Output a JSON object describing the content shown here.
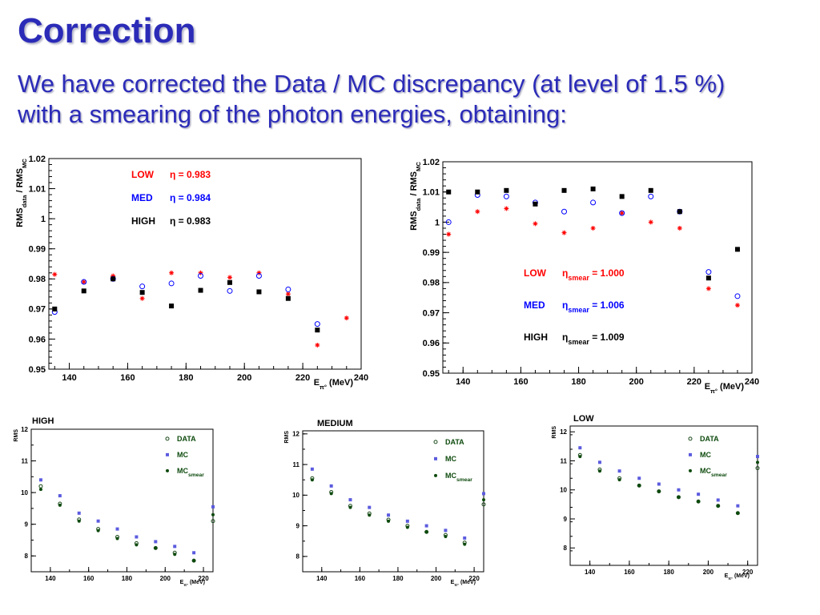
{
  "slide": {
    "title": "Correction",
    "subtitle_main": "We have corrected the Data / MC discrepancy (at level of ",
    "subtitle_value": "1.5 %)",
    "subtitle_line2": "with a smearing of the photon energies, obtaining:"
  },
  "colors": {
    "title": "#2b2bb8",
    "low": "#ff0000",
    "med": "#0000ff",
    "high": "#000000",
    "mc": "#5b5bdf",
    "mc_smear": "#0d4a0d",
    "data": "#1a4a1a"
  },
  "chart_data": [
    {
      "type": "scatter",
      "ylabel": "RMS_data / RMS_MC",
      "xlabel": "E_π° (MeV)",
      "xlim": [
        133,
        240
      ],
      "ylim": [
        0.95,
        1.02
      ],
      "xticks": [
        "140",
        "160",
        "180",
        "200",
        "220",
        "240"
      ],
      "yticks": [
        "0.95",
        "0.96",
        "0.97",
        "0.98",
        "0.99",
        "1",
        "1.01",
        "1.02"
      ],
      "legend": [
        {
          "name": "LOW",
          "symbol": "η",
          "value": "= 0.983",
          "color": "#ff0000"
        },
        {
          "name": "MED",
          "symbol": "η",
          "value": "= 0.984",
          "color": "#0000ff"
        },
        {
          "name": "HIGH",
          "symbol": "η",
          "value": "= 0.983",
          "color": "#000000"
        }
      ],
      "series": [
        {
          "name": "LOW",
          "marker": "star",
          "color": "#ff0000",
          "x": [
            135,
            145,
            155,
            165,
            175,
            185,
            195,
            205,
            215,
            225,
            235
          ],
          "y": [
            0.9815,
            0.979,
            0.981,
            0.9735,
            0.982,
            0.982,
            0.9805,
            0.982,
            0.975,
            0.958,
            0.967
          ]
        },
        {
          "name": "MED",
          "marker": "open-circle",
          "color": "#0000ff",
          "x": [
            135,
            145,
            155,
            165,
            175,
            185,
            195,
            205,
            215,
            225
          ],
          "y": [
            0.969,
            0.979,
            0.98,
            0.9775,
            0.9785,
            0.981,
            0.976,
            0.981,
            0.9765,
            0.965
          ]
        },
        {
          "name": "HIGH",
          "marker": "square",
          "color": "#000000",
          "x": [
            135,
            145,
            155,
            165,
            175,
            185,
            195,
            205,
            215,
            225
          ],
          "y": [
            0.97,
            0.976,
            0.98,
            0.9755,
            0.971,
            0.9762,
            0.9788,
            0.9757,
            0.9735,
            0.963
          ]
        }
      ]
    },
    {
      "type": "scatter",
      "ylabel": "RMS_data / RMS_MC",
      "xlabel": "E_π° (MeV)",
      "xlim": [
        133,
        240
      ],
      "ylim": [
        0.95,
        1.02
      ],
      "xticks": [
        "140",
        "160",
        "180",
        "200",
        "220",
        "240"
      ],
      "yticks": [
        "0.95",
        "0.96",
        "0.97",
        "0.98",
        "0.99",
        "1",
        "1.01",
        "1.02"
      ],
      "legend": [
        {
          "name": "LOW",
          "symbol": "η",
          "sub": "smear",
          "value": "= 1.000",
          "color": "#ff0000"
        },
        {
          "name": "MED",
          "symbol": "η",
          "sub": "smear",
          "value": "= 1.006",
          "color": "#0000ff"
        },
        {
          "name": "HIGH",
          "symbol": "η",
          "sub": "smear",
          "value": "= 1.009",
          "color": "#000000"
        }
      ],
      "series": [
        {
          "name": "LOW",
          "marker": "star",
          "color": "#ff0000",
          "x": [
            135,
            145,
            155,
            165,
            175,
            185,
            195,
            205,
            215,
            225,
            235
          ],
          "y": [
            0.996,
            1.0035,
            1.0045,
            0.9995,
            0.9965,
            0.998,
            1.003,
            1.0,
            0.998,
            0.978,
            0.9725
          ]
        },
        {
          "name": "MED",
          "marker": "open-circle",
          "color": "#0000ff",
          "x": [
            135,
            145,
            155,
            165,
            175,
            185,
            195,
            205,
            215,
            225,
            235
          ],
          "y": [
            1.0,
            1.009,
            1.0085,
            1.0065,
            1.0035,
            1.0065,
            1.003,
            1.0085,
            1.0035,
            0.9835,
            0.9755
          ]
        },
        {
          "name": "HIGH",
          "marker": "square",
          "color": "#000000",
          "x": [
            135,
            145,
            155,
            165,
            175,
            185,
            195,
            205,
            215,
            225,
            235
          ],
          "y": [
            1.01,
            1.01,
            1.0105,
            1.006,
            1.0105,
            1.011,
            1.0085,
            1.0105,
            1.0035,
            0.9815,
            0.991
          ]
        }
      ]
    },
    {
      "type": "scatter",
      "title": "HIGH",
      "ylabel": "RMS",
      "xlabel": "E_π° (MeV)",
      "xlim": [
        130,
        225
      ],
      "ylim": [
        7.5,
        12
      ],
      "xticks": [
        "140",
        "160",
        "180",
        "200",
        "220"
      ],
      "yticks": [
        "8",
        "9",
        "10",
        "11",
        "12"
      ],
      "legend": [
        "DATA",
        "MC",
        "MC_smear"
      ],
      "series": [
        {
          "name": "DATA",
          "marker": "open-circle",
          "color": "#1a4a1a",
          "x": [
            135,
            145,
            155,
            165,
            175,
            185,
            195,
            205,
            215,
            225
          ],
          "y": [
            10.2,
            9.65,
            9.15,
            8.85,
            8.6,
            8.4,
            8.25,
            8.1,
            7.85,
            9.1
          ]
        },
        {
          "name": "MC",
          "marker": "square",
          "color": "#5b5bdf",
          "x": [
            135,
            145,
            155,
            165,
            175,
            185,
            195,
            205,
            215,
            225
          ],
          "y": [
            10.4,
            9.9,
            9.35,
            9.1,
            8.85,
            8.6,
            8.45,
            8.3,
            8.1,
            9.55
          ]
        },
        {
          "name": "MC_smear",
          "marker": "dot",
          "color": "#0d4a0d",
          "x": [
            135,
            145,
            155,
            165,
            175,
            185,
            195,
            205,
            215,
            225
          ],
          "y": [
            10.1,
            9.6,
            9.1,
            8.8,
            8.55,
            8.35,
            8.25,
            8.05,
            7.85,
            9.3
          ]
        }
      ]
    },
    {
      "type": "scatter",
      "title": "MEDIUM",
      "ylabel": "RMS",
      "xlabel": "E_π° (MeV)",
      "xlim": [
        130,
        225
      ],
      "ylim": [
        7.5,
        12.1
      ],
      "xticks": [
        "140",
        "160",
        "180",
        "200",
        "220"
      ],
      "yticks": [
        "8",
        "9",
        "10",
        "11",
        "12"
      ],
      "legend": [
        "DATA",
        "MC",
        "MC_smear"
      ],
      "series": [
        {
          "name": "DATA",
          "marker": "open-circle",
          "color": "#1a4a1a",
          "x": [
            135,
            145,
            155,
            165,
            175,
            185,
            195,
            205,
            215,
            225
          ],
          "y": [
            10.55,
            10.1,
            9.65,
            9.4,
            9.2,
            9.0,
            8.8,
            8.7,
            8.45,
            9.7
          ]
        },
        {
          "name": "MC",
          "marker": "square",
          "color": "#5b5bdf",
          "x": [
            135,
            145,
            155,
            165,
            175,
            185,
            195,
            205,
            215,
            225
          ],
          "y": [
            10.85,
            10.3,
            9.85,
            9.6,
            9.35,
            9.15,
            9.0,
            8.85,
            8.6,
            10.05
          ]
        },
        {
          "name": "MC_smear",
          "marker": "dot",
          "color": "#0d4a0d",
          "x": [
            135,
            145,
            155,
            165,
            175,
            185,
            195,
            205,
            215,
            225
          ],
          "y": [
            10.5,
            10.05,
            9.6,
            9.35,
            9.15,
            8.95,
            8.8,
            8.65,
            8.4,
            9.85
          ]
        }
      ]
    },
    {
      "type": "scatter",
      "title": "LOW",
      "ylabel": "RMS",
      "xlabel": "E_π° (MeV)",
      "xlim": [
        130,
        225
      ],
      "ylim": [
        7.4,
        12.2
      ],
      "xticks": [
        "140",
        "160",
        "180",
        "200",
        "220"
      ],
      "yticks": [
        "8",
        "9",
        "10",
        "11",
        "12"
      ],
      "legend": [
        "DATA",
        "MC",
        "MC_smear"
      ],
      "series": [
        {
          "name": "DATA",
          "marker": "open-circle",
          "color": "#1a4a1a",
          "x": [
            135,
            145,
            155,
            165,
            175,
            185,
            195,
            205,
            215,
            225
          ],
          "y": [
            11.2,
            10.7,
            10.4,
            10.15,
            9.95,
            9.75,
            9.6,
            9.45,
            9.2,
            10.75
          ]
        },
        {
          "name": "MC",
          "marker": "square",
          "color": "#5b5bdf",
          "x": [
            135,
            145,
            155,
            165,
            175,
            185,
            195,
            205,
            215,
            225
          ],
          "y": [
            11.45,
            10.95,
            10.65,
            10.4,
            10.2,
            10.0,
            9.85,
            9.65,
            9.45,
            11.15
          ]
        },
        {
          "name": "MC_smear",
          "marker": "dot",
          "color": "#0d4a0d",
          "x": [
            135,
            145,
            155,
            165,
            175,
            185,
            195,
            205,
            215,
            225
          ],
          "y": [
            11.15,
            10.65,
            10.35,
            10.15,
            9.95,
            9.75,
            9.6,
            9.45,
            9.2,
            10.95
          ]
        }
      ]
    }
  ]
}
